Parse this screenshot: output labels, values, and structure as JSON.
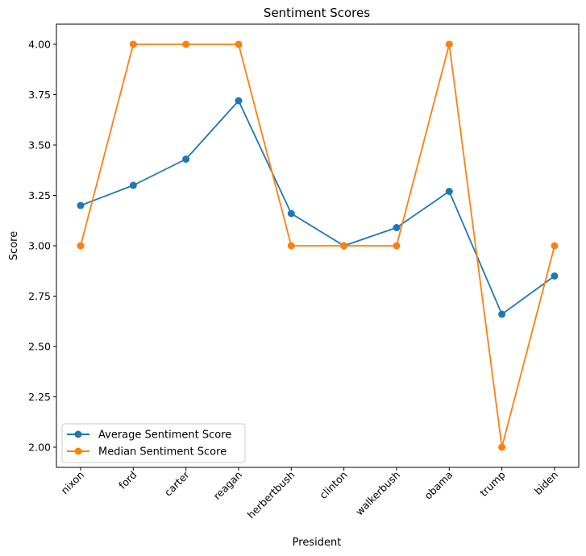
{
  "chart_data": {
    "type": "line",
    "title": "Sentiment Scores",
    "xlabel": "President",
    "ylabel": "Score",
    "categories": [
      "nixon",
      "ford",
      "carter",
      "reagan",
      "herbertbush",
      "clinton",
      "walkerbush",
      "obama",
      "trump",
      "biden"
    ],
    "ylim": [
      1.9,
      4.1
    ],
    "yticks": [
      2.0,
      2.25,
      2.5,
      2.75,
      3.0,
      3.25,
      3.5,
      3.75,
      4.0
    ],
    "ytick_labels": [
      "2.00",
      "2.25",
      "2.50",
      "2.75",
      "3.00",
      "3.25",
      "3.50",
      "3.75",
      "4.00"
    ],
    "grid": false,
    "legend_position": "lower-left",
    "series": [
      {
        "name": "Average Sentiment Score",
        "color": "#1f77b4",
        "marker": "circle",
        "values": [
          3.2,
          3.3,
          3.43,
          3.72,
          3.16,
          3.0,
          3.09,
          3.27,
          2.66,
          2.85
        ]
      },
      {
        "name": "Median Sentiment Score",
        "color": "#ff7f0e",
        "marker": "circle",
        "values": [
          3.0,
          4.0,
          4.0,
          4.0,
          3.0,
          3.0,
          3.0,
          4.0,
          2.0,
          3.0
        ]
      }
    ]
  }
}
